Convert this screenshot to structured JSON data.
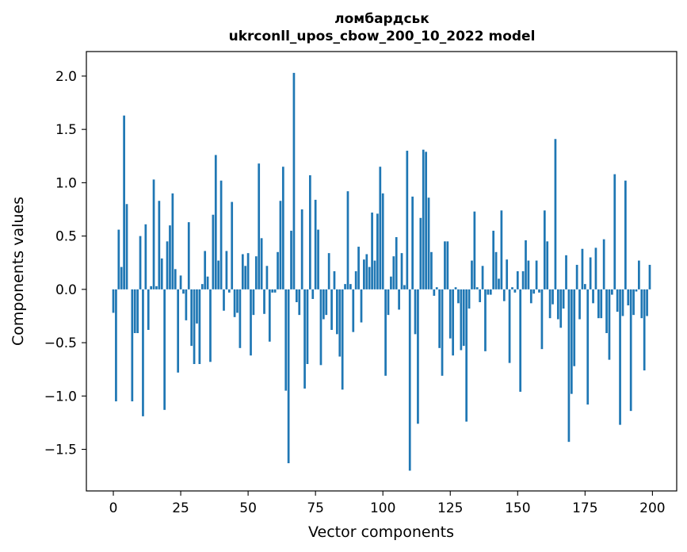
{
  "chart_data": {
    "type": "bar",
    "title_line1": "ломбардськ",
    "title_line2": "ukrconll_upos_cbow_200_10_2022 model",
    "xlabel": "Vector components",
    "ylabel": "Components values",
    "xlim": [
      -10,
      209
    ],
    "ylim": [
      -1.89,
      2.23
    ],
    "x_ticks": [
      0,
      25,
      50,
      75,
      100,
      125,
      150,
      175,
      200
    ],
    "y_ticks": [
      -1.5,
      -1.0,
      -0.5,
      0.0,
      0.5,
      1.0,
      1.5,
      2.0
    ],
    "y_tick_labels": [
      "−1.5",
      "−1.0",
      "−0.5",
      "0.0",
      "0.5",
      "1.0",
      "1.5",
      "2.0"
    ],
    "bar_color": "#1f77b4",
    "values": [
      -0.22,
      -1.05,
      0.56,
      0.21,
      1.63,
      0.8,
      0.0,
      -1.05,
      -0.41,
      -0.41,
      0.5,
      -1.19,
      0.61,
      -0.38,
      0.03,
      1.03,
      0.03,
      0.83,
      0.29,
      -1.13,
      0.45,
      0.6,
      0.9,
      0.19,
      -0.78,
      0.13,
      -0.04,
      -0.29,
      0.63,
      -0.53,
      -0.7,
      -0.32,
      -0.7,
      0.05,
      0.36,
      0.12,
      -0.68,
      0.7,
      1.26,
      0.27,
      1.02,
      -0.2,
      0.36,
      -0.03,
      0.82,
      -0.26,
      -0.22,
      -0.55,
      0.33,
      0.22,
      0.34,
      -0.62,
      -0.24,
      0.31,
      1.18,
      0.48,
      -0.23,
      0.22,
      -0.49,
      -0.03,
      -0.03,
      0.35,
      0.83,
      1.15,
      -0.95,
      -1.63,
      0.55,
      2.03,
      -0.12,
      -0.24,
      0.75,
      -0.93,
      -0.7,
      1.07,
      -0.09,
      0.84,
      0.56,
      -0.71,
      -0.28,
      -0.24,
      0.34,
      -0.38,
      0.17,
      -0.42,
      -0.63,
      -0.94,
      0.05,
      0.92,
      0.05,
      -0.4,
      0.17,
      0.4,
      -0.31,
      0.28,
      0.33,
      0.21,
      0.72,
      0.27,
      0.71,
      1.15,
      0.9,
      -0.81,
      -0.24,
      0.12,
      0.31,
      0.49,
      -0.19,
      0.34,
      0.04,
      1.3,
      -1.7,
      0.87,
      -0.42,
      -1.26,
      0.67,
      1.31,
      1.29,
      0.86,
      0.35,
      -0.06,
      0.02,
      -0.55,
      -0.81,
      0.45,
      0.45,
      -0.46,
      -0.62,
      0.02,
      -0.13,
      -0.57,
      -0.53,
      -1.24,
      -0.18,
      0.27,
      0.73,
      0.02,
      -0.12,
      0.22,
      -0.58,
      -0.05,
      -0.05,
      0.55,
      0.35,
      0.1,
      0.74,
      -0.11,
      0.28,
      -0.69,
      0.02,
      -0.03,
      0.17,
      -0.96,
      0.17,
      0.46,
      0.27,
      -0.13,
      -0.04,
      0.27,
      -0.03,
      -0.56,
      0.74,
      0.45,
      -0.27,
      -0.14,
      1.41,
      -0.28,
      -0.36,
      -0.18,
      0.32,
      -1.43,
      -0.98,
      -0.72,
      0.23,
      -0.28,
      0.38,
      0.05,
      -1.08,
      0.3,
      -0.13,
      0.39,
      -0.27,
      -0.27,
      0.47,
      -0.41,
      -0.66,
      -0.05,
      1.08,
      -0.21,
      -1.27,
      -0.25,
      1.02,
      -0.15,
      -1.14,
      -0.24,
      -0.02,
      0.27,
      -0.27,
      -0.76,
      -0.25,
      0.23
    ]
  }
}
